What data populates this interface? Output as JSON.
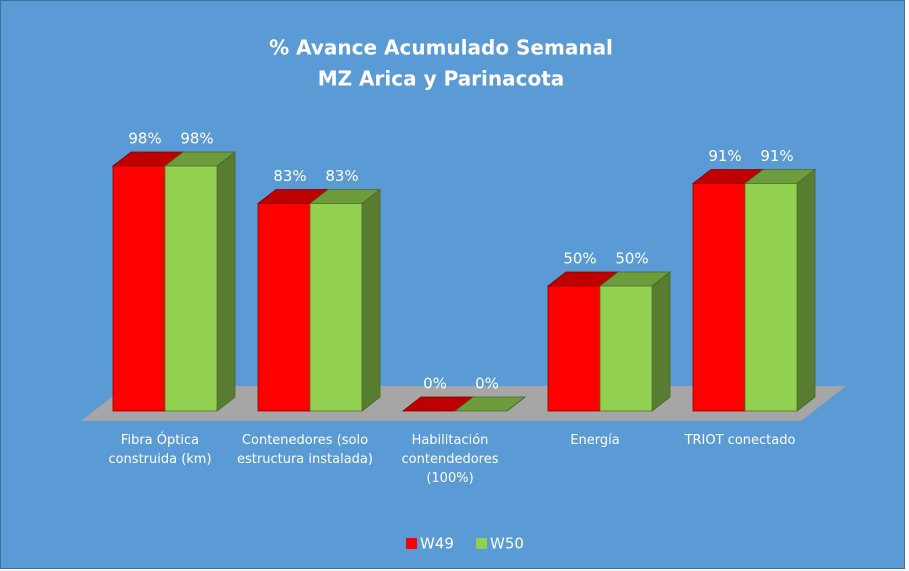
{
  "chart_data": {
    "type": "bar3d",
    "title": "% Avance Acumulado Semanal",
    "subtitle": "MZ Arica y Parinacota",
    "categories": [
      "Fibra Óptica construida (km)",
      "Contenedores (solo estructura instalada)",
      "Habilitación contendedores (100%)",
      "Energía",
      "TRIOT conectado"
    ],
    "series": [
      {
        "name": "W49",
        "color": "#ff0000",
        "values": [
          98,
          83,
          0,
          50,
          91
        ],
        "value_labels": [
          "98%",
          "83%",
          "0%",
          "50%",
          "91%"
        ]
      },
      {
        "name": "W50",
        "color": "#92d050",
        "values": [
          98,
          83,
          0,
          50,
          91
        ],
        "value_labels": [
          "98%",
          "83%",
          "0%",
          "50%",
          "91%"
        ]
      }
    ],
    "ylim": [
      0,
      100
    ],
    "legend": "bottom"
  }
}
